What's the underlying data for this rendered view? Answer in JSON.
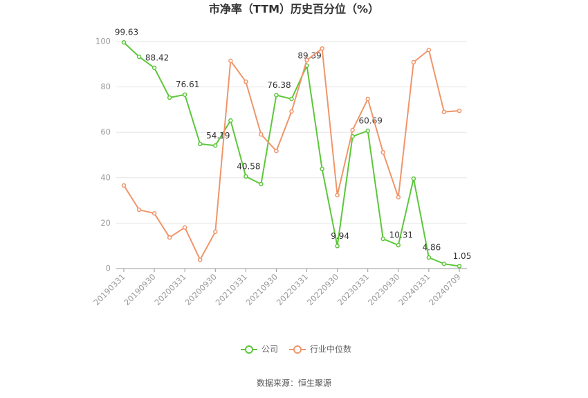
{
  "chart_data": {
    "type": "line",
    "title": "市净率（TTM）历史百分位（%）",
    "source": "数据来源：恒生聚源",
    "categories": [
      "20190331",
      null,
      "20190930",
      null,
      "20200331",
      null,
      "20200930",
      null,
      "20210331",
      null,
      "20210930",
      null,
      "20220331",
      null,
      "20220930",
      null,
      "20230331",
      null,
      "20230930",
      null,
      "20240331",
      null,
      "20240709"
    ],
    "series": [
      {
        "name": "公司",
        "color": "#5cc73a",
        "values": [
          99.63,
          93.3,
          88.42,
          75.3,
          76.61,
          54.9,
          54.19,
          65.2,
          40.58,
          37.2,
          76.38,
          74.7,
          89.39,
          43.9,
          9.94,
          58.2,
          60.69,
          13.1,
          10.31,
          39.6,
          4.86,
          2.1,
          1.05
        ],
        "value_labels": [
          "99.63",
          null,
          "88.42",
          null,
          "76.61",
          null,
          "54.19",
          null,
          "40.58",
          null,
          "76.38",
          null,
          "89.39",
          null,
          "9.94",
          null,
          "60.69",
          null,
          "10.31",
          null,
          "4.86",
          null,
          "1.05"
        ]
      },
      {
        "name": "行业中位数",
        "color": "#f0956a",
        "values": [
          36.6,
          25.9,
          24.3,
          13.7,
          18.1,
          3.9,
          16.2,
          91.5,
          82.3,
          59.1,
          51.8,
          69.2,
          91.8,
          96.9,
          32.3,
          61,
          74.7,
          51.2,
          31.4,
          90.9,
          96.3,
          69,
          69.5
        ]
      }
    ],
    "ylim": [
      0,
      100
    ],
    "yticks": [
      0,
      20,
      40,
      60,
      80,
      100
    ],
    "grid": true,
    "legend": "bottom"
  }
}
